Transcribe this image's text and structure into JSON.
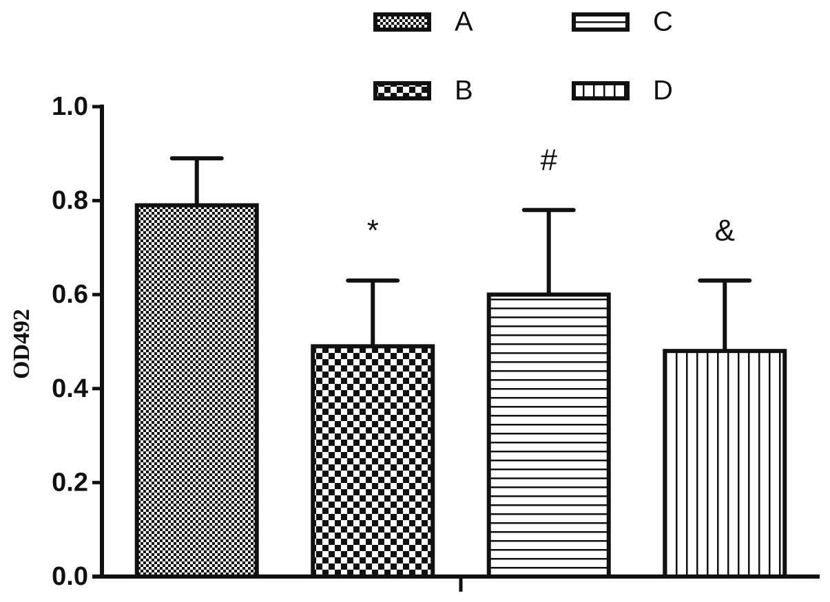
{
  "chart_data": {
    "type": "bar",
    "y_label": "OD492",
    "categories": [
      null
    ],
    "ylim": [
      0,
      1.0
    ],
    "yticks": [
      {
        "value": 0,
        "label": "0.0"
      },
      {
        "value": 0.2,
        "label": "0.2"
      },
      {
        "value": 0.4,
        "label": "0.4"
      },
      {
        "value": 0.6,
        "label": "0.6"
      },
      {
        "value": 0.8,
        "label": "0.8"
      },
      {
        "value": 1.0,
        "label": "1.0"
      }
    ],
    "series": [
      {
        "name": "A",
        "color": "#111111",
        "pattern": "fine-checker",
        "values": [
          0.79
        ],
        "errors": [
          0.1
        ],
        "annotations": [
          null
        ]
      },
      {
        "name": "B",
        "color": "#111111",
        "pattern": "coarse-checker",
        "values": [
          0.49
        ],
        "errors": [
          0.14
        ],
        "annotations": [
          "*"
        ]
      },
      {
        "name": "C",
        "color": "#111111",
        "pattern": "horizontal-lines",
        "values": [
          0.6
        ],
        "errors": [
          0.18
        ],
        "annotations": [
          "#"
        ]
      },
      {
        "name": "D",
        "color": "#111111",
        "pattern": "vertical-lines",
        "values": [
          0.48
        ],
        "errors": [
          0.15
        ],
        "annotations": [
          "&"
        ]
      }
    ]
  }
}
